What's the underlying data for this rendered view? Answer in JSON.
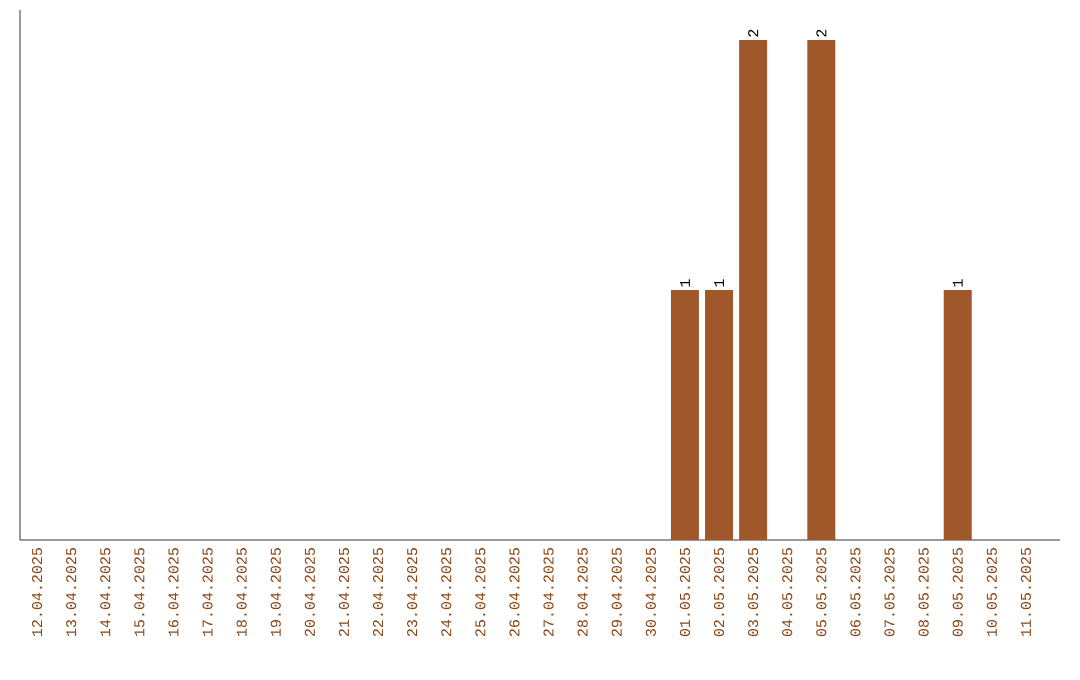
{
  "chart_data": {
    "type": "bar",
    "categories": [
      "12.04.2025",
      "13.04.2025",
      "14.04.2025",
      "15.04.2025",
      "16.04.2025",
      "17.04.2025",
      "18.04.2025",
      "19.04.2025",
      "20.04.2025",
      "21.04.2025",
      "22.04.2025",
      "23.04.2025",
      "24.04.2025",
      "25.04.2025",
      "26.04.2025",
      "27.04.2025",
      "28.04.2025",
      "29.04.2025",
      "30.04.2025",
      "01.05.2025",
      "02.05.2025",
      "03.05.2025",
      "04.05.2025",
      "05.05.2025",
      "06.05.2025",
      "07.05.2025",
      "08.05.2025",
      "09.05.2025",
      "10.05.2025",
      "11.05.2025"
    ],
    "values": [
      null,
      null,
      null,
      null,
      null,
      null,
      null,
      null,
      null,
      null,
      null,
      null,
      null,
      null,
      null,
      null,
      null,
      null,
      null,
      1,
      1,
      2,
      null,
      2,
      null,
      null,
      null,
      1,
      null,
      null
    ],
    "color": "#a0582a",
    "ylim": [
      0,
      2.12
    ],
    "data_labels": true,
    "tick_labels": "x",
    "grid": false
  }
}
